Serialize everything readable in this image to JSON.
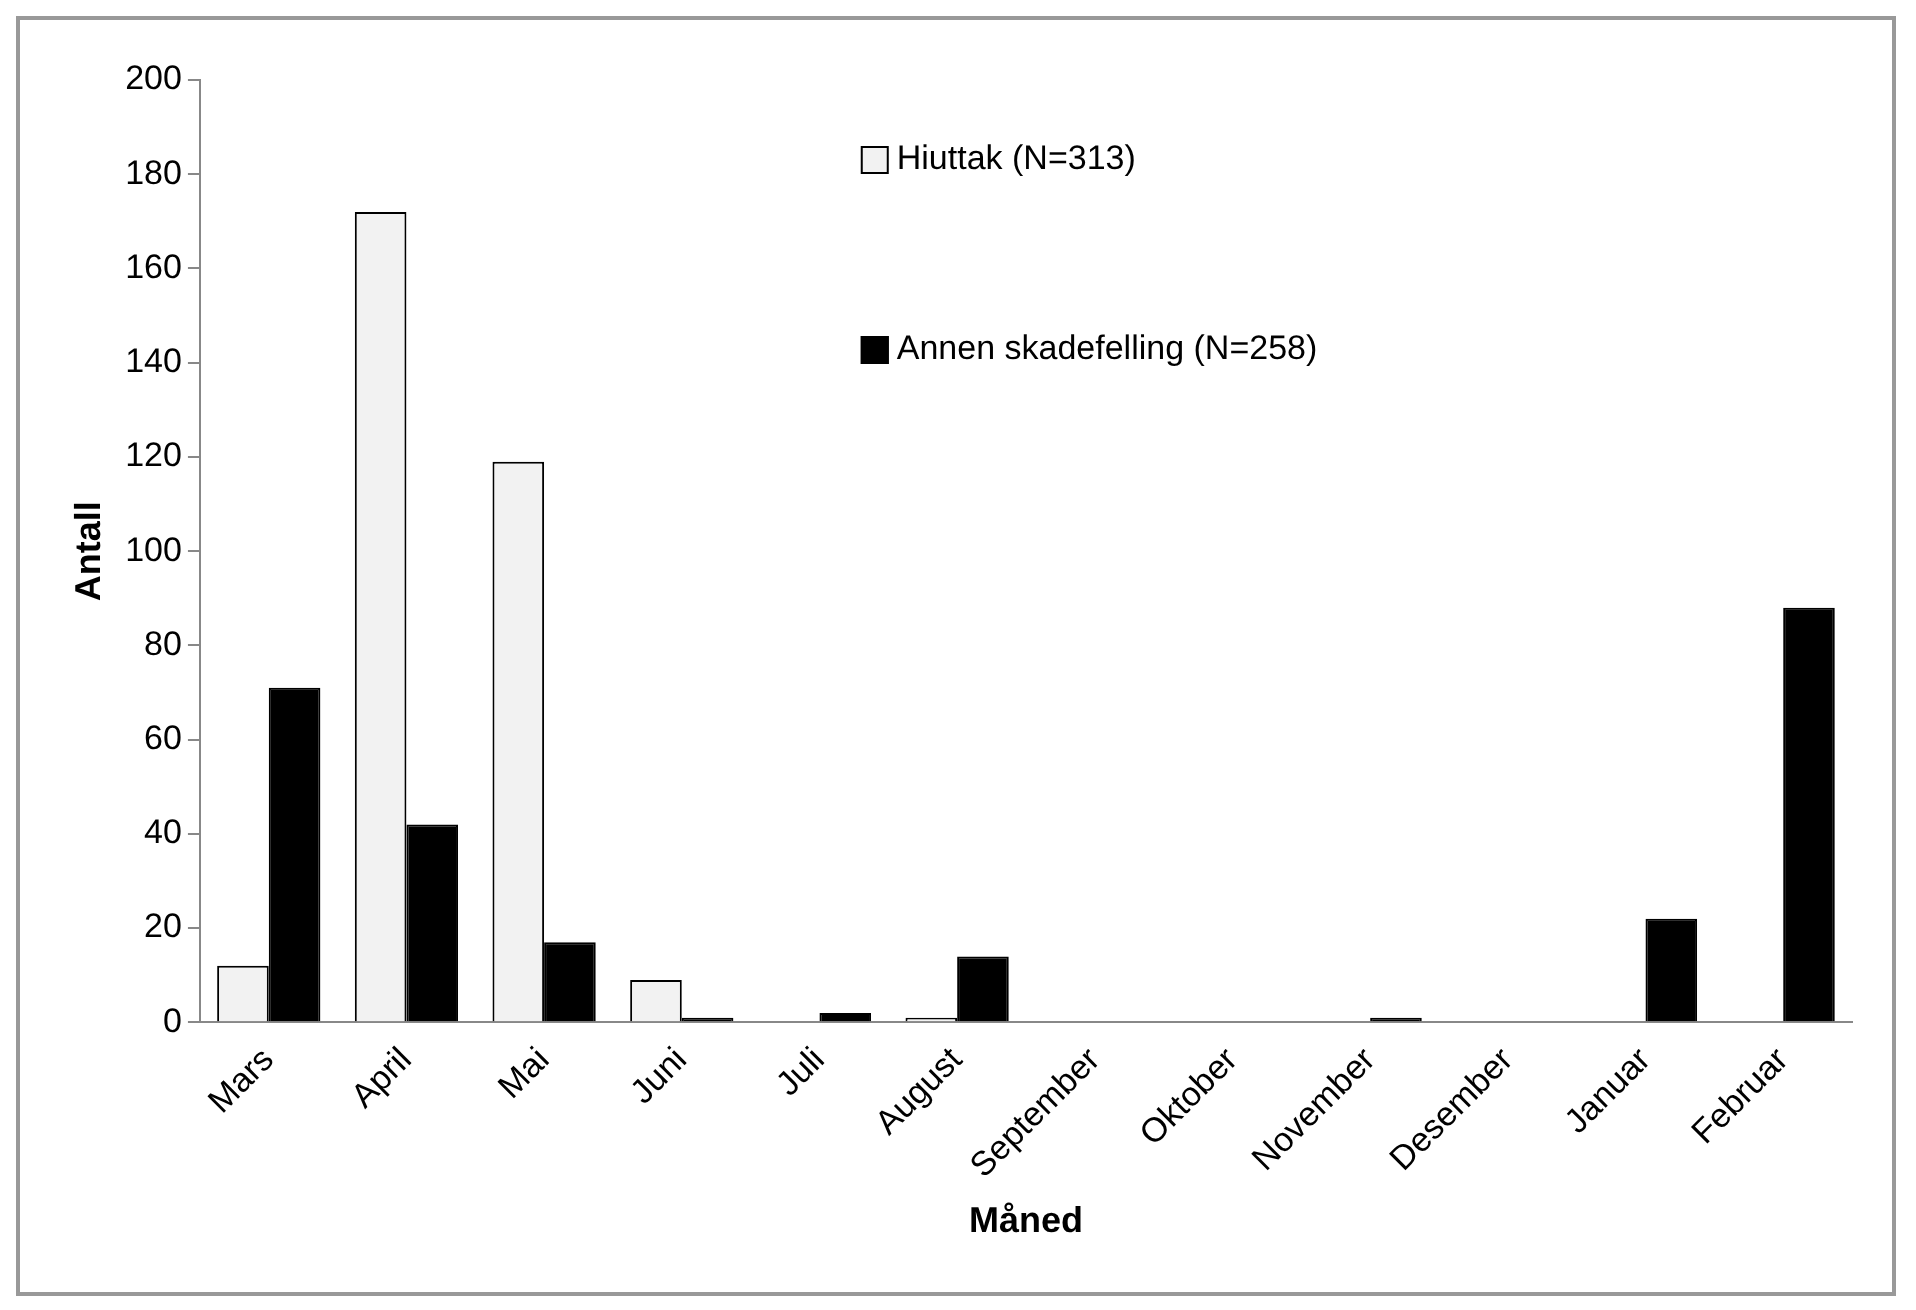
{
  "chart_data": {
    "type": "bar",
    "xlabel": "Måned",
    "ylabel": "Antall",
    "categories": [
      "Mars",
      "April",
      "Mai",
      "Juni",
      "Juli",
      "August",
      "September",
      "Oktober",
      "November",
      "Desember",
      "Januar",
      "Februar"
    ],
    "series": [
      {
        "name": "Hiuttak (N=313)",
        "color": "#f2f2f2",
        "values": [
          12,
          172,
          119,
          9,
          0,
          1,
          0,
          0,
          0,
          0,
          0,
          0
        ]
      },
      {
        "name": "Annen skadefelling (N=258)",
        "color": "#000000",
        "values": [
          71,
          42,
          17,
          1,
          2,
          14,
          0,
          0,
          1,
          0,
          22,
          88
        ]
      }
    ],
    "ylim": [
      0,
      200
    ],
    "yticks": [
      0,
      20,
      40,
      60,
      80,
      100,
      120,
      140,
      160,
      180,
      200
    ],
    "grid": false,
    "legend": "top right"
  }
}
